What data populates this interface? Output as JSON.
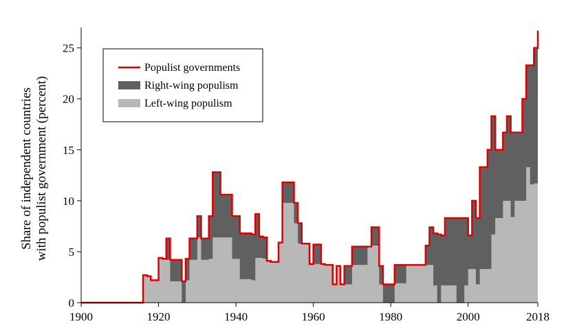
{
  "chart_data": {
    "type": "area",
    "title": "",
    "xlabel": "",
    "ylabel": [
      "Share of independent countries",
      "with populist government (percent)"
    ],
    "xlim": [
      1900,
      2018
    ],
    "ylim": [
      0,
      27
    ],
    "xticks": [
      1900,
      1920,
      1940,
      1960,
      1980,
      2000,
      2018
    ],
    "yticks": [
      0,
      5,
      10,
      15,
      20,
      25
    ],
    "grid": false,
    "legend_position": "top-left",
    "legend": [
      "Populist governments",
      "Right-wing populism",
      "Left-wing populism"
    ],
    "colors": {
      "total": "#dd0000",
      "right": "#606060",
      "left": "#b8b8b8"
    },
    "x": [
      1900,
      1901,
      1902,
      1903,
      1904,
      1905,
      1906,
      1907,
      1908,
      1909,
      1910,
      1911,
      1912,
      1913,
      1914,
      1915,
      1916,
      1917,
      1918,
      1919,
      1920,
      1921,
      1922,
      1923,
      1924,
      1925,
      1926,
      1927,
      1928,
      1929,
      1930,
      1931,
      1932,
      1933,
      1934,
      1935,
      1936,
      1937,
      1938,
      1939,
      1940,
      1941,
      1942,
      1943,
      1944,
      1945,
      1946,
      1947,
      1948,
      1949,
      1950,
      1951,
      1952,
      1953,
      1954,
      1955,
      1956,
      1957,
      1958,
      1959,
      1960,
      1961,
      1962,
      1963,
      1964,
      1965,
      1966,
      1967,
      1968,
      1969,
      1970,
      1971,
      1972,
      1973,
      1974,
      1975,
      1976,
      1977,
      1978,
      1979,
      1980,
      1981,
      1982,
      1983,
      1984,
      1985,
      1986,
      1987,
      1988,
      1989,
      1990,
      1991,
      1992,
      1993,
      1994,
      1995,
      1996,
      1997,
      1998,
      1999,
      2000,
      2001,
      2002,
      2003,
      2004,
      2005,
      2006,
      2007,
      2008,
      2009,
      2010,
      2011,
      2012,
      2013,
      2014,
      2015,
      2016,
      2017,
      2018
    ],
    "series": [
      {
        "name": "Populist governments",
        "values": [
          0,
          0,
          0,
          0,
          0,
          0,
          0,
          0,
          0,
          0,
          0,
          0,
          0,
          0,
          0,
          0,
          2.7,
          2.6,
          2.2,
          2.2,
          4.4,
          4.3,
          6.3,
          4.2,
          4.2,
          4.2,
          2.1,
          4.3,
          6.3,
          6.3,
          8.5,
          6.3,
          6.3,
          8.5,
          12.8,
          12.8,
          10.6,
          10.6,
          10.6,
          8.5,
          8.5,
          6.8,
          6.8,
          6.8,
          6.7,
          8.7,
          6.5,
          6.4,
          4.1,
          4.0,
          4.0,
          5.9,
          11.8,
          11.8,
          11.8,
          9.8,
          7.8,
          5.8,
          5.8,
          3.8,
          5.7,
          5.7,
          3.8,
          3.7,
          3.7,
          1.8,
          3.6,
          1.8,
          3.6,
          3.6,
          5.5,
          5.5,
          5.5,
          5.5,
          5.5,
          7.4,
          7.4,
          3.6,
          1.8,
          1.8,
          1.8,
          3.7,
          3.7,
          3.7,
          3.7,
          3.7,
          3.7,
          3.7,
          3.7,
          5.6,
          7.4,
          6.8,
          6.7,
          6.6,
          8.3,
          8.3,
          8.3,
          8.3,
          8.3,
          8.3,
          6.6,
          10.0,
          8.3,
          13.3,
          13.3,
          15.0,
          18.3,
          15.0,
          15.0,
          16.7,
          18.3,
          16.7,
          16.7,
          16.7,
          20.0,
          23.3,
          23.3,
          25.0,
          26.7
        ]
      },
      {
        "name": "Right-wing populism",
        "values": [
          0,
          0,
          0,
          0,
          0,
          0,
          0,
          0,
          0,
          0,
          0,
          0,
          0,
          0,
          0,
          0,
          0,
          0,
          0,
          0,
          0,
          0,
          2.1,
          2.1,
          2.1,
          2.1,
          2.1,
          2.1,
          2.1,
          2.1,
          2.1,
          2.1,
          2.1,
          4.2,
          6.4,
          6.4,
          4.2,
          4.2,
          4.2,
          4.2,
          4.2,
          4.5,
          4.5,
          4.5,
          4.5,
          4.3,
          2.1,
          2.1,
          0,
          0,
          0,
          0,
          2.0,
          2.0,
          2.0,
          2.0,
          2.0,
          0,
          0,
          0,
          1.9,
          1.9,
          0,
          0,
          0,
          0,
          0,
          0,
          1.8,
          1.8,
          1.8,
          1.8,
          1.8,
          1.8,
          0,
          1.8,
          1.8,
          1.8,
          1.8,
          1.8,
          1.8,
          1.8,
          1.8,
          1.8,
          0,
          0,
          0,
          0,
          0,
          1.9,
          3.7,
          5.1,
          6.7,
          4.9,
          6.6,
          6.6,
          6.6,
          8.3,
          8.3,
          6.6,
          3.3,
          6.7,
          6.5,
          10.0,
          10.0,
          11.7,
          11.6,
          6.7,
          6.7,
          6.7,
          8.3,
          8.3,
          6.7,
          6.7,
          10.0,
          10.0,
          11.7,
          13.3,
          15.0
        ]
      },
      {
        "name": "Left-wing populism",
        "values": [
          0,
          0,
          0,
          0,
          0,
          0,
          0,
          0,
          0,
          0,
          0,
          0,
          0,
          0,
          0,
          0,
          2.7,
          2.6,
          2.2,
          2.2,
          4.4,
          4.3,
          4.2,
          2.1,
          2.1,
          2.1,
          0,
          2.2,
          4.2,
          4.2,
          6.4,
          4.2,
          4.2,
          4.3,
          6.4,
          6.4,
          6.4,
          6.4,
          6.4,
          4.3,
          4.3,
          2.3,
          2.3,
          2.3,
          2.2,
          4.4,
          4.4,
          4.3,
          4.1,
          4.0,
          4.0,
          5.9,
          9.8,
          9.8,
          9.8,
          7.8,
          5.8,
          5.8,
          5.8,
          3.8,
          3.8,
          3.8,
          3.8,
          3.7,
          3.7,
          1.8,
          3.6,
          1.8,
          1.8,
          1.8,
          3.7,
          3.7,
          3.7,
          3.7,
          5.5,
          5.6,
          5.6,
          1.8,
          0,
          0,
          0,
          1.9,
          1.9,
          1.9,
          3.7,
          3.7,
          3.7,
          3.7,
          3.7,
          3.7,
          3.7,
          1.7,
          0,
          1.7,
          1.7,
          1.7,
          1.7,
          0,
          0,
          1.7,
          3.3,
          3.3,
          1.8,
          3.3,
          3.3,
          3.3,
          6.7,
          8.3,
          8.3,
          10.0,
          10.0,
          8.4,
          10.0,
          10.0,
          10.0,
          13.3,
          11.6,
          11.7,
          11.7
        ]
      }
    ]
  }
}
